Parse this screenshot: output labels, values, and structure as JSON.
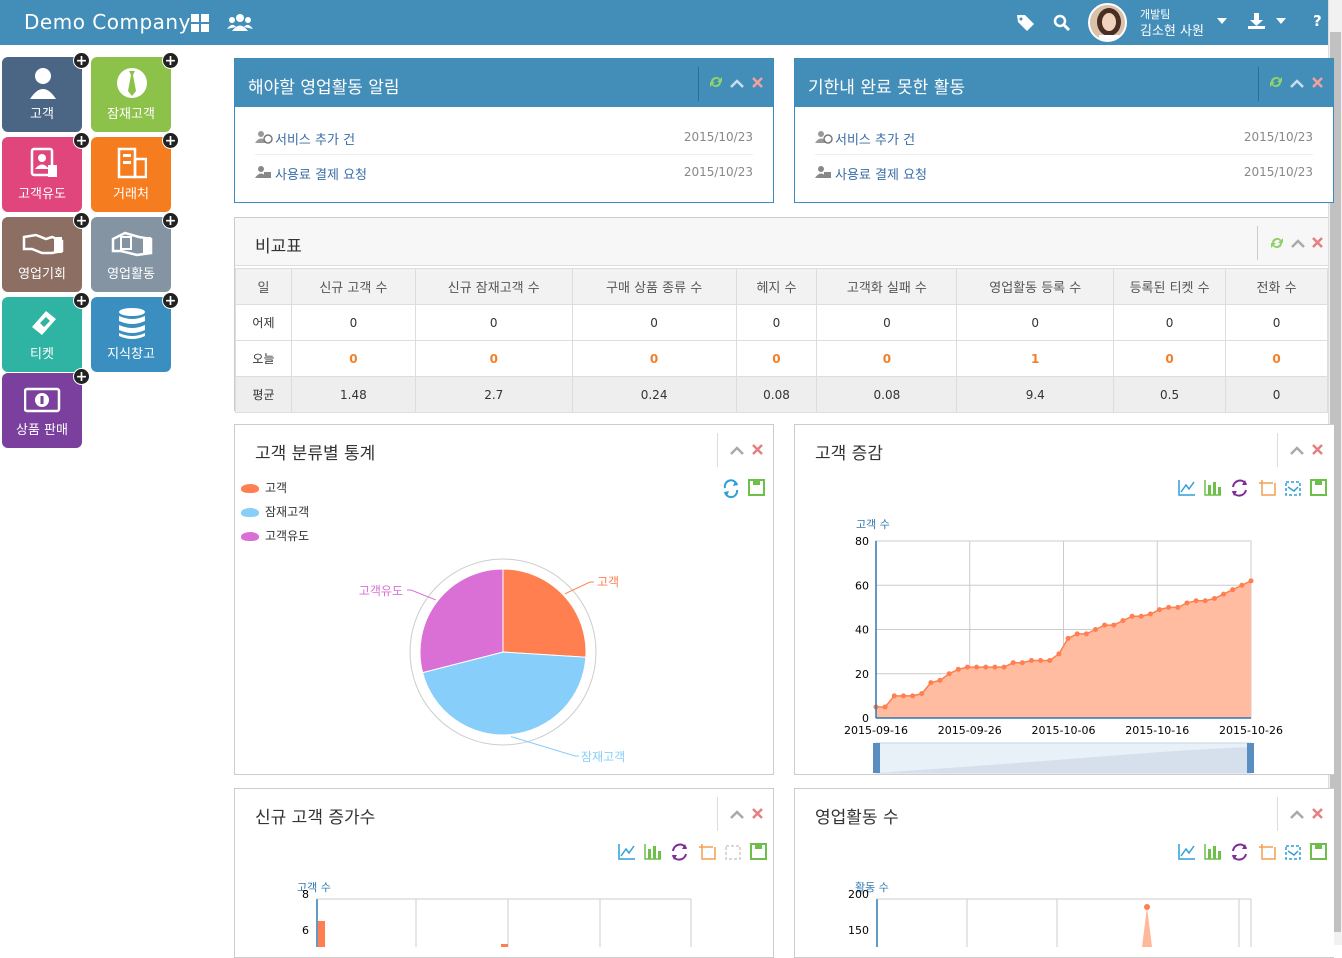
{
  "topbar": {
    "brand": "Demo Company",
    "team": "개발팀",
    "user": "김소현 사원"
  },
  "tiles": [
    {
      "label": "고객",
      "color": "#4b6584"
    },
    {
      "label": "잠재고객",
      "color": "#8cc24a"
    },
    {
      "label": "고객유도",
      "color": "#e0457b"
    },
    {
      "label": "거래처",
      "color": "#f57c1f"
    },
    {
      "label": "영업기회",
      "color": "#8d6e63"
    },
    {
      "label": "영업활동",
      "color": "#8494a3"
    },
    {
      "label": "티켓",
      "color": "#2fb3a3"
    },
    {
      "label": "지식창고",
      "color": "#3a8fc0"
    },
    {
      "label": "상품 판매",
      "color": "#7b3f9d"
    }
  ],
  "widgets": {
    "todo": {
      "title": "해야할 영업활동 알림",
      "items": [
        {
          "text": "서비스 추가 건",
          "date": "2015/10/23"
        },
        {
          "text": "사용료 결제 요청",
          "date": "2015/10/23"
        }
      ]
    },
    "overdue": {
      "title": "기한내 완료 못한 활동",
      "items": [
        {
          "text": "서비스 추가 건",
          "date": "2015/10/23"
        },
        {
          "text": "사용료 결제 요청",
          "date": "2015/10/23"
        }
      ]
    },
    "compare": {
      "title": "비교표",
      "headers": [
        "일",
        "신규 고객 수",
        "신규 잠재고객 수",
        "구매 상품 종류 수",
        "헤지 수",
        "고객화 실패 수",
        "영업활동 등록 수",
        "등록된 티켓 수",
        "전화 수"
      ],
      "rows": [
        [
          "어제",
          "0",
          "0",
          "0",
          "0",
          "0",
          "0",
          "0",
          "0"
        ],
        [
          "오늘",
          "0",
          "0",
          "0",
          "0",
          "0",
          "1",
          "0",
          "0"
        ],
        [
          "평균",
          "1.48",
          "2.7",
          "0.24",
          "0.08",
          "0.08",
          "9.4",
          "0.5",
          "0"
        ]
      ]
    },
    "pie": {
      "title": "고객 분류별 통계",
      "legend": [
        "고객",
        "잠재고객",
        "고객유도"
      ],
      "colors": [
        "#ff7f50",
        "#87cefa",
        "#da70d6"
      ]
    },
    "growth": {
      "title": "고객 증감"
    },
    "new_customers": {
      "title": "신규 고객 증가수"
    },
    "activities": {
      "title": "영업활동 수"
    }
  },
  "chart_data": [
    {
      "type": "pie",
      "categories": [
        "고객",
        "잠재고객",
        "고객유도"
      ],
      "values": [
        26,
        45,
        29
      ],
      "colors": [
        "#ff7f50",
        "#87cefa",
        "#da70d6"
      ]
    },
    {
      "type": "area",
      "ylabel": "고객 수",
      "ylim": [
        0,
        80
      ],
      "yticks": [
        "0",
        "20",
        "40",
        "60",
        "80"
      ],
      "xticks": [
        "2015-09-16",
        "2015-09-26",
        "2015-10-06",
        "2015-10-16",
        "2015-10-26"
      ],
      "values": [
        5,
        5,
        10,
        10,
        10,
        11,
        16,
        17,
        20,
        22,
        23,
        23,
        23,
        23,
        23,
        25,
        25,
        26,
        26,
        26,
        29,
        36,
        38,
        38,
        40,
        42,
        42,
        44,
        46,
        46,
        47,
        49,
        50,
        50,
        52,
        53,
        53,
        54,
        56,
        58,
        60,
        62
      ]
    },
    {
      "type": "bar",
      "ylabel": "고객 수",
      "yticks": [
        "8",
        "6"
      ]
    },
    {
      "type": "line",
      "ylabel": "활동 수",
      "yticks": [
        "200",
        "150"
      ]
    }
  ]
}
